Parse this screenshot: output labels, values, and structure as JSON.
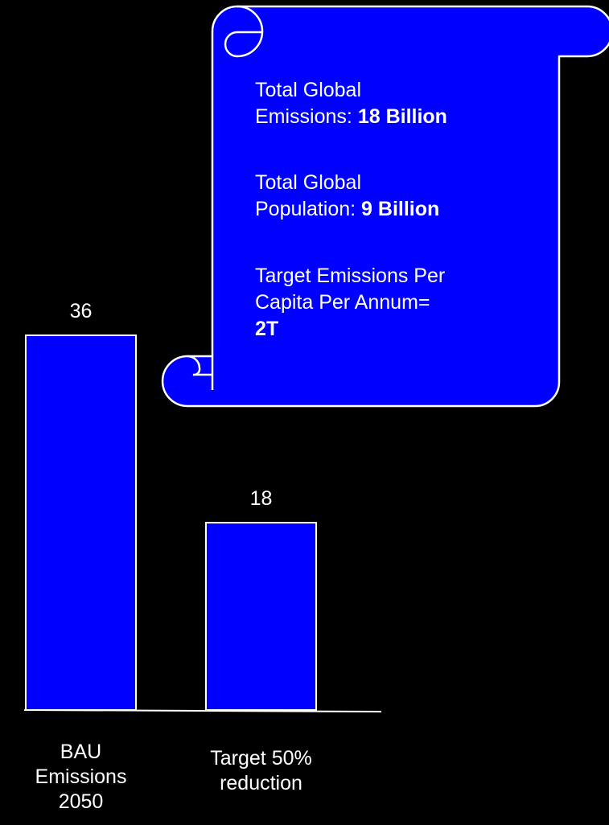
{
  "colors": {
    "background": "#000000",
    "bar_fill": "#0000ff",
    "outline": "#ffffff",
    "text": "#ffffff"
  },
  "chart_data": {
    "type": "bar",
    "categories": [
      "BAU Emissions 2050",
      "Target 50% reduction"
    ],
    "category_lines": [
      [
        "BAU",
        "Emissions",
        "2050"
      ],
      [
        "Target 50%",
        "reduction"
      ]
    ],
    "values": [
      36,
      18
    ],
    "data_labels": [
      "36",
      "18"
    ],
    "title": "",
    "xlabel": "",
    "ylabel": "",
    "ylim": [
      0,
      36
    ],
    "grid": false,
    "legend": "none"
  },
  "callout": {
    "shape": "scroll",
    "line1_label": "Total Global",
    "line2_label": "Emissions: ",
    "line2_value": "18 Billion",
    "line3_label": "Total Global",
    "line4_label": "Population: ",
    "line4_value": "9 Billion",
    "line5_label": "Target Emissions Per",
    "line6_label": "Capita Per Annum=",
    "line7_value": "2T"
  }
}
